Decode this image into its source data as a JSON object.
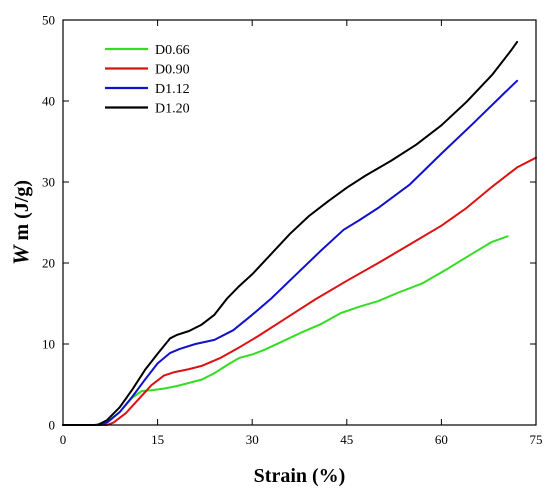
{
  "chart_data": {
    "type": "line",
    "xlabel": "Strain (%)",
    "ylabel_italic": "W",
    "ylabel_rest": "m  (J/g)",
    "xlim": [
      0,
      75
    ],
    "ylim": [
      0,
      50
    ],
    "xticks": [
      0,
      15,
      30,
      45,
      60,
      75
    ],
    "yticks": [
      0,
      10,
      20,
      30,
      40,
      50
    ],
    "grid": false,
    "legend_position": "top-left",
    "series": [
      {
        "name": "D0.66",
        "color": "#33dd22",
        "points": [
          [
            0,
            0
          ],
          [
            5,
            0
          ],
          [
            7,
            0.4
          ],
          [
            9,
            1.6
          ],
          [
            11,
            3.4
          ],
          [
            12.5,
            4.2
          ],
          [
            14,
            4.3
          ],
          [
            16,
            4.5
          ],
          [
            18,
            4.8
          ],
          [
            20,
            5.2
          ],
          [
            22,
            5.6
          ],
          [
            24,
            6.4
          ],
          [
            26,
            7.4
          ],
          [
            28,
            8.3
          ],
          [
            30,
            8.7
          ],
          [
            32,
            9.3
          ],
          [
            35,
            10.4
          ],
          [
            38,
            11.5
          ],
          [
            41,
            12.5
          ],
          [
            44,
            13.8
          ],
          [
            47,
            14.6
          ],
          [
            50,
            15.3
          ],
          [
            53,
            16.3
          ],
          [
            57,
            17.5
          ],
          [
            61,
            19.3
          ],
          [
            65,
            21.2
          ],
          [
            68,
            22.6
          ],
          [
            70.5,
            23.3
          ]
        ]
      },
      {
        "name": "D0.90",
        "color": "#dd1111",
        "points": [
          [
            0,
            0
          ],
          [
            7,
            0
          ],
          [
            8,
            0.3
          ],
          [
            10,
            1.5
          ],
          [
            12,
            3.2
          ],
          [
            14,
            4.9
          ],
          [
            16,
            6.1
          ],
          [
            17.5,
            6.5
          ],
          [
            20,
            6.9
          ],
          [
            22,
            7.3
          ],
          [
            25,
            8.3
          ],
          [
            28,
            9.6
          ],
          [
            31,
            11
          ],
          [
            35,
            13
          ],
          [
            40,
            15.5
          ],
          [
            45,
            17.8
          ],
          [
            50,
            20
          ],
          [
            55,
            22.3
          ],
          [
            60,
            24.6
          ],
          [
            64,
            26.8
          ],
          [
            68,
            29.4
          ],
          [
            72,
            31.8
          ],
          [
            75,
            33
          ]
        ]
      },
      {
        "name": "D1.12",
        "color": "#1111cc",
        "points": [
          [
            0,
            0
          ],
          [
            6,
            0
          ],
          [
            7,
            0.3
          ],
          [
            9,
            1.6
          ],
          [
            11,
            3.5
          ],
          [
            13,
            5.6
          ],
          [
            15,
            7.6
          ],
          [
            17,
            8.9
          ],
          [
            18.5,
            9.4
          ],
          [
            21,
            10
          ],
          [
            24,
            10.5
          ],
          [
            27,
            11.7
          ],
          [
            30,
            13.6
          ],
          [
            33,
            15.6
          ],
          [
            37,
            18.6
          ],
          [
            41,
            21.6
          ],
          [
            44.5,
            24.1
          ],
          [
            47,
            25.3
          ],
          [
            50,
            26.8
          ],
          [
            55,
            29.7
          ],
          [
            60,
            33.5
          ],
          [
            65,
            37.2
          ],
          [
            70,
            41
          ],
          [
            72,
            42.5
          ]
        ]
      },
      {
        "name": "D1.20",
        "color": "#000000",
        "points": [
          [
            0,
            0
          ],
          [
            5.5,
            0
          ],
          [
            7,
            0.6
          ],
          [
            9,
            2.2
          ],
          [
            11,
            4.4
          ],
          [
            13,
            6.8
          ],
          [
            15,
            8.8
          ],
          [
            17,
            10.7
          ],
          [
            18,
            11.1
          ],
          [
            20,
            11.6
          ],
          [
            22,
            12.4
          ],
          [
            24,
            13.6
          ],
          [
            26,
            15.6
          ],
          [
            28,
            17.2
          ],
          [
            30,
            18.6
          ],
          [
            33,
            21.1
          ],
          [
            36,
            23.6
          ],
          [
            39,
            25.8
          ],
          [
            42,
            27.6
          ],
          [
            45,
            29.3
          ],
          [
            48,
            30.8
          ],
          [
            52,
            32.6
          ],
          [
            56,
            34.6
          ],
          [
            60,
            37
          ],
          [
            64,
            39.9
          ],
          [
            68,
            43.2
          ],
          [
            71,
            46.2
          ],
          [
            72,
            47.3
          ]
        ]
      }
    ]
  }
}
